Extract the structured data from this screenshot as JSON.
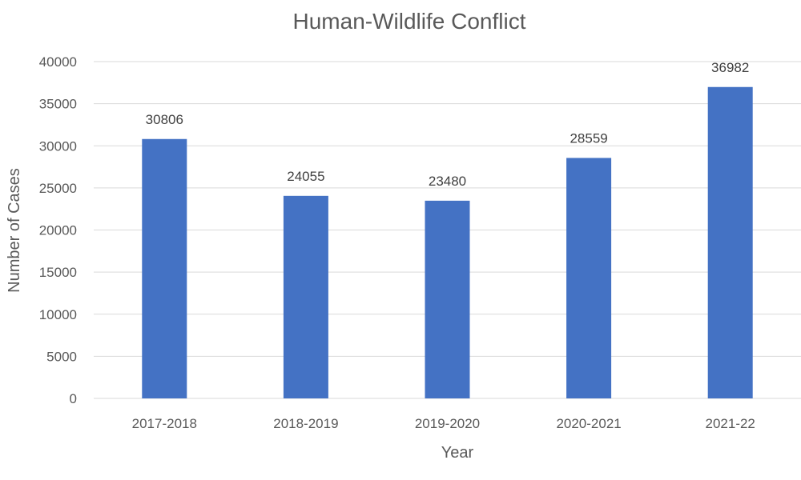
{
  "chart_data": {
    "type": "bar",
    "title": "Human-Wildlife Conflict",
    "xlabel": "Year",
    "ylabel": "Number of Cases",
    "categories": [
      "2017-2018",
      "2018-2019",
      "2019-2020",
      "2020-2021",
      "2021-22"
    ],
    "values": [
      30806,
      24055,
      23480,
      28559,
      36982
    ],
    "ylim": [
      0,
      40000
    ],
    "yticks": [
      0,
      5000,
      10000,
      15000,
      20000,
      25000,
      30000,
      35000,
      40000
    ],
    "grid": true,
    "legend": "none",
    "colors": {
      "bar": "#4472c4",
      "gridline": "#d9d9d9",
      "text": "#595959"
    }
  }
}
